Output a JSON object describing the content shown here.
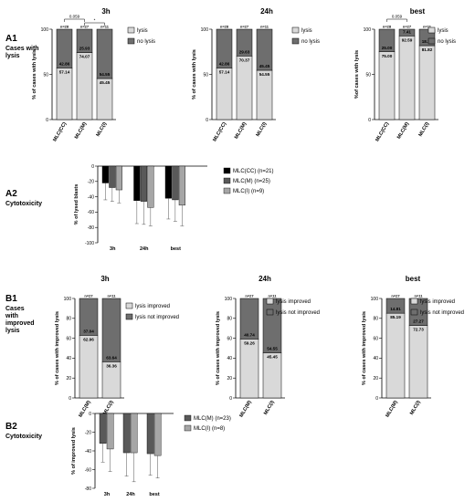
{
  "colors": {
    "lysis": "#d9d9d9",
    "no_lysis": "#6e6e6e",
    "improved": "#d9d9d9",
    "not_improved": "#6e6e6e",
    "cc": "#000000",
    "m": "#595959",
    "i": "#a6a6a6"
  },
  "panels": {
    "A1": {
      "label": "A1",
      "title_lines": [
        "Cases with",
        "lysis"
      ]
    },
    "A2": {
      "label": "A2",
      "title_lines": [
        "Cytotoxicity"
      ]
    },
    "B1": {
      "label": "B1",
      "title_lines": [
        "Cases",
        "with",
        "improved",
        "lysis"
      ]
    },
    "B2": {
      "label": "B2",
      "title_lines": [
        "Cytotoxicity"
      ]
    }
  },
  "chart_data": [
    {
      "id": "A1-3h",
      "type": "bar",
      "stacked": true,
      "title": "3h",
      "ylabel": "% of cases with lysis",
      "ylim": [
        0,
        100
      ],
      "yticks": [
        0,
        50,
        100
      ],
      "categories": [
        "MLC(CC)",
        "MLC(M)",
        "MLC(I)"
      ],
      "n_labels": [
        "n=28",
        "n=27",
        "n=11"
      ],
      "series": [
        {
          "name": "lysis",
          "values": [
            57.14,
            74.07,
            45.45
          ]
        },
        {
          "name": "no lysis",
          "values": [
            42.86,
            25.93,
            54.55
          ]
        }
      ],
      "significance": [
        {
          "from": 0,
          "to": 1,
          "text": "0.059"
        },
        {
          "from": 1,
          "to": 2,
          "text": "*"
        }
      ],
      "legend": [
        "lysis",
        "no lysis"
      ]
    },
    {
      "id": "A1-24h",
      "type": "bar",
      "stacked": true,
      "title": "24h",
      "ylabel": "% of cases with lysis",
      "ylim": [
        0,
        100
      ],
      "yticks": [
        0,
        50,
        100
      ],
      "categories": [
        "MLC(CC)",
        "MLC(M)",
        "MLC(I)"
      ],
      "n_labels": [
        "n=28",
        "n=27",
        "n=11"
      ],
      "series": [
        {
          "name": "lysis",
          "values": [
            57.14,
            70.37,
            54.55
          ]
        },
        {
          "name": "no lysis",
          "values": [
            42.86,
            29.63,
            45.45
          ]
        }
      ],
      "legend": [
        "lysis",
        "no lysis"
      ]
    },
    {
      "id": "A1-best",
      "type": "bar",
      "stacked": true,
      "title": "best",
      "ylabel": "%of cases with lysis",
      "ylim": [
        0,
        100
      ],
      "yticks": [
        0,
        50,
        100
      ],
      "categories": [
        "MLC(CC)",
        "MLC(M)",
        "MLC(I)"
      ],
      "n_labels": [
        "n=28",
        "n=27",
        "n=11"
      ],
      "series": [
        {
          "name": "lysis",
          "values": [
            75.0,
            92.59,
            81.82
          ]
        },
        {
          "name": "no lysis",
          "values": [
            25.0,
            7.41,
            18.18
          ]
        }
      ],
      "significance": [
        {
          "from": 0,
          "to": 1,
          "text": "0.059"
        }
      ],
      "legend": [
        "lysis",
        "no lysis"
      ]
    },
    {
      "id": "A2",
      "type": "bar",
      "title": "",
      "ylabel": "% of lysed blasts",
      "ylim": [
        -100,
        0
      ],
      "yticks": [
        0,
        -20,
        -40,
        -60,
        -80,
        -100
      ],
      "categories": [
        "3h",
        "24h",
        "best"
      ],
      "series": [
        {
          "name": "MLC(CC) (n=21)",
          "values": [
            -22,
            -45,
            -42
          ],
          "errors": [
            22,
            30,
            27
          ]
        },
        {
          "name": "MLC(M)   (n=25)",
          "values": [
            -28,
            -46,
            -44
          ],
          "errors": [
            18,
            30,
            28
          ]
        },
        {
          "name": "MLC(I)    (n=9)",
          "values": [
            -31,
            -54,
            -51
          ],
          "errors": [
            17,
            24,
            27
          ]
        }
      ]
    },
    {
      "id": "B1-3h",
      "type": "bar",
      "stacked": true,
      "title": "3h",
      "ylabel": "% of cases with improved lysis",
      "ylim": [
        0,
        100
      ],
      "yticks": [
        0,
        20,
        40,
        60,
        80,
        100
      ],
      "categories": [
        "MLC(M)",
        "MLC(I)"
      ],
      "n_labels": [
        "n=27",
        "n=11"
      ],
      "series": [
        {
          "name": "lysis improved",
          "values": [
            62.96,
            36.36
          ]
        },
        {
          "name": "lysis not improved",
          "values": [
            37.04,
            63.64
          ]
        }
      ],
      "legend": [
        "lysis improved",
        "lysis not improved"
      ]
    },
    {
      "id": "B1-24h",
      "type": "bar",
      "stacked": true,
      "title": "24h",
      "ylabel": "% of cases with improved lysis",
      "ylim": [
        0,
        100
      ],
      "yticks": [
        0,
        20,
        40,
        60,
        80,
        100
      ],
      "categories": [
        "MLC(M)",
        "MLC(I)"
      ],
      "n_labels": [
        "n=27",
        "n=11"
      ],
      "series": [
        {
          "name": "lysis improved",
          "values": [
            59.26,
            45.45
          ]
        },
        {
          "name": "lysis not improved",
          "values": [
            40.74,
            54.55
          ]
        }
      ],
      "legend": [
        "lysis improved",
        "lysis not improved"
      ]
    },
    {
      "id": "B1-best",
      "type": "bar",
      "stacked": true,
      "title": "best",
      "ylabel": "% of cases with improved lysis",
      "ylim": [
        0,
        100
      ],
      "yticks": [
        0,
        20,
        40,
        60,
        80,
        100
      ],
      "categories": [
        "MLC(M)",
        "MLC(I)"
      ],
      "n_labels": [
        "n=27",
        "n=11"
      ],
      "series": [
        {
          "name": "lysis improved",
          "values": [
            85.19,
            72.73
          ]
        },
        {
          "name": "lysis not improved",
          "values": [
            14.81,
            27.27
          ]
        }
      ],
      "legend": [
        "lysis improved",
        "lysis not improved"
      ]
    },
    {
      "id": "B2",
      "type": "bar",
      "title": "",
      "ylabel": "% of improved lysis",
      "ylim": [
        -80,
        0
      ],
      "yticks": [
        0,
        -20,
        -40,
        -60,
        -80
      ],
      "categories": [
        "3h",
        "24h",
        "best"
      ],
      "series": [
        {
          "name": "MLC(M) (n=23)",
          "values": [
            -32,
            -42,
            -43
          ],
          "errors": [
            20,
            25,
            23
          ]
        },
        {
          "name": "MLC(I)   (n=8)",
          "values": [
            -38,
            -42,
            -45
          ],
          "errors": [
            24,
            31,
            24
          ]
        }
      ]
    }
  ]
}
